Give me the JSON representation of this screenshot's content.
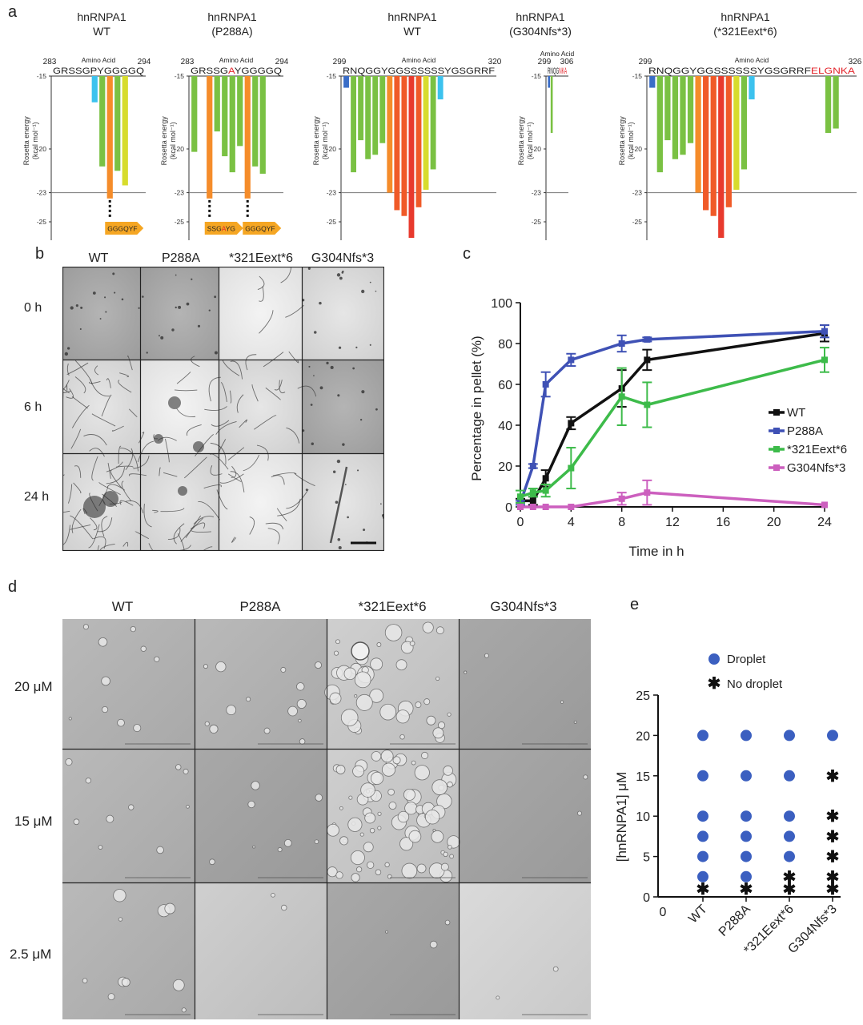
{
  "panel_labels": {
    "a": "a",
    "b": "b",
    "c": "c",
    "d": "d",
    "e": "e"
  },
  "panel_a": {
    "y_axis_label": "Rosetta energy (kcal mol⁻¹)",
    "y_ticks": [
      "-15",
      "-20",
      "-23",
      "-25",
      "-27"
    ],
    "amino_acid_label": "Amino Acid",
    "threshold": -23,
    "charts": [
      {
        "title_line1": "hnRNPA1",
        "title_line2": "WT",
        "start": "283",
        "end": "294",
        "sequence": "GRSSGPYGGGGQ",
        "mutant_letters": "",
        "energies": [
          null,
          null,
          null,
          null,
          null,
          -16.8,
          -21.2,
          -23.4,
          -21.5,
          -22.5,
          null,
          null
        ],
        "fibril_labels": [
          "GGGQYF"
        ]
      },
      {
        "title_line1": "hnRNPA1",
        "title_line2": "(P288A)",
        "start": "283",
        "end": "294",
        "sequence": "GRSSGAYGGGGQ",
        "mutant_letters": "A",
        "energies": [
          -20.2,
          null,
          -23.4,
          -18.8,
          -20.5,
          -21.6,
          -19.8,
          -23.4,
          -21.2,
          -21.7,
          null,
          null
        ],
        "fibril_labels": [
          "SSGAYG",
          "GGGQYF"
        ]
      },
      {
        "title_line1": "hnRNPA1",
        "title_line2": "WT",
        "start": "299",
        "end": "320",
        "sequence": "RNQGGYGGSSSSSSYGSGRRF",
        "mutant_letters": "",
        "energies": [
          -15.8,
          -21.6,
          -19.4,
          -20.7,
          -20.4,
          -19.6,
          -23.0,
          -24.2,
          -24.6,
          -26.1,
          -24.0,
          -22.8,
          -21.4,
          -16.6,
          null,
          null,
          null,
          null,
          null,
          null,
          null
        ],
        "fibril_labels": []
      },
      {
        "title_line1": "hnRNPA1",
        "title_line2": "(G304Nfs*3)",
        "start": "299",
        "end": "306",
        "sequence": "RNQGNKA",
        "mutant_letters": "NKA",
        "energies": [
          -15.8,
          -18.9,
          null,
          null,
          null,
          null,
          null
        ],
        "fibril_labels": []
      },
      {
        "title_line1": "hnRNPA1",
        "title_line2": "(*321Eext*6)",
        "start": "299",
        "end": "326",
        "sequence": "RNQGGYGGSSSSSSYGSGRRFELGNKA",
        "mutant_letters": "ELGNKA",
        "energies": [
          -15.8,
          -21.6,
          -19.4,
          -20.7,
          -20.4,
          -19.6,
          -23.0,
          -24.2,
          -24.6,
          -26.1,
          -24.0,
          -22.8,
          -21.4,
          -16.6,
          null,
          null,
          null,
          null,
          null,
          null,
          null,
          null,
          null,
          -18.9,
          -18.6,
          null,
          null
        ],
        "fibril_labels": []
      }
    ]
  },
  "panel_b": {
    "columns": [
      "WT",
      "P288A",
      "*321Eext*6",
      "G304Nfs*3"
    ],
    "rows": [
      "0 h",
      "6 h",
      "24 h"
    ]
  },
  "chart_data": {
    "type": "line",
    "xlabel": "Time in h",
    "ylabel": "Percentage in pellet (%)",
    "xlim": [
      0,
      24
    ],
    "ylim": [
      0,
      100
    ],
    "xticks": [
      0,
      4,
      8,
      12,
      16,
      20,
      24
    ],
    "yticks": [
      0,
      20,
      40,
      60,
      80,
      100
    ],
    "x": [
      0,
      1,
      2,
      4,
      8,
      10,
      24
    ],
    "series": [
      {
        "name": "WT",
        "color": "#111111",
        "values": [
          3,
          3,
          14,
          41,
          58,
          72,
          85
        ],
        "errors": [
          1,
          2,
          4,
          3,
          9,
          5,
          4
        ]
      },
      {
        "name": "P288A",
        "color": "#3f51b5",
        "values": [
          2,
          20,
          60,
          72,
          80,
          82,
          86
        ],
        "errors": [
          1,
          1,
          6,
          3,
          4,
          1,
          3
        ]
      },
      {
        "name": "*321Eext*6",
        "color": "#3dbb4a",
        "values": [
          5,
          7,
          8,
          19,
          54,
          50,
          72
        ],
        "errors": [
          3,
          2,
          3,
          10,
          14,
          11,
          6
        ]
      },
      {
        "name": "G304Nfs*3",
        "color": "#cc5fbe",
        "values": [
          0,
          0,
          0,
          0,
          4,
          7,
          1
        ],
        "errors": [
          0,
          0,
          0,
          0,
          3,
          6,
          0
        ]
      }
    ],
    "legend": "right"
  },
  "panel_d": {
    "columns": [
      "WT",
      "P288A",
      "*321Eext*6",
      "G304Nfs*3"
    ],
    "rows": [
      "20 μM",
      "15 μM",
      "2.5 μM"
    ]
  },
  "panel_e": {
    "type": "scatter",
    "ylabel": "[hnRNPA1] μM",
    "ylim": [
      0,
      25
    ],
    "yticks": [
      "0",
      "5",
      "10",
      "15",
      "20",
      "25"
    ],
    "x_origin_label": "0",
    "categories": [
      "WT",
      "P288A",
      "*321Eext*6",
      "G304Nfs*3"
    ],
    "legend": {
      "droplet": "Droplet",
      "no_droplet": "No droplet"
    },
    "droplet_color": "#3b5fc0",
    "concentrations": [
      20,
      15,
      10,
      7.5,
      5,
      2.5,
      1
    ],
    "status": [
      [
        "droplet",
        "droplet",
        "droplet",
        "droplet",
        "droplet",
        "droplet",
        "none"
      ],
      [
        "droplet",
        "droplet",
        "droplet",
        "droplet",
        "droplet",
        "droplet",
        "none"
      ],
      [
        "droplet",
        "droplet",
        "droplet",
        "droplet",
        "droplet",
        "none",
        "none"
      ],
      [
        "droplet",
        "none",
        "none",
        "none",
        "none",
        "none",
        "none"
      ]
    ]
  }
}
